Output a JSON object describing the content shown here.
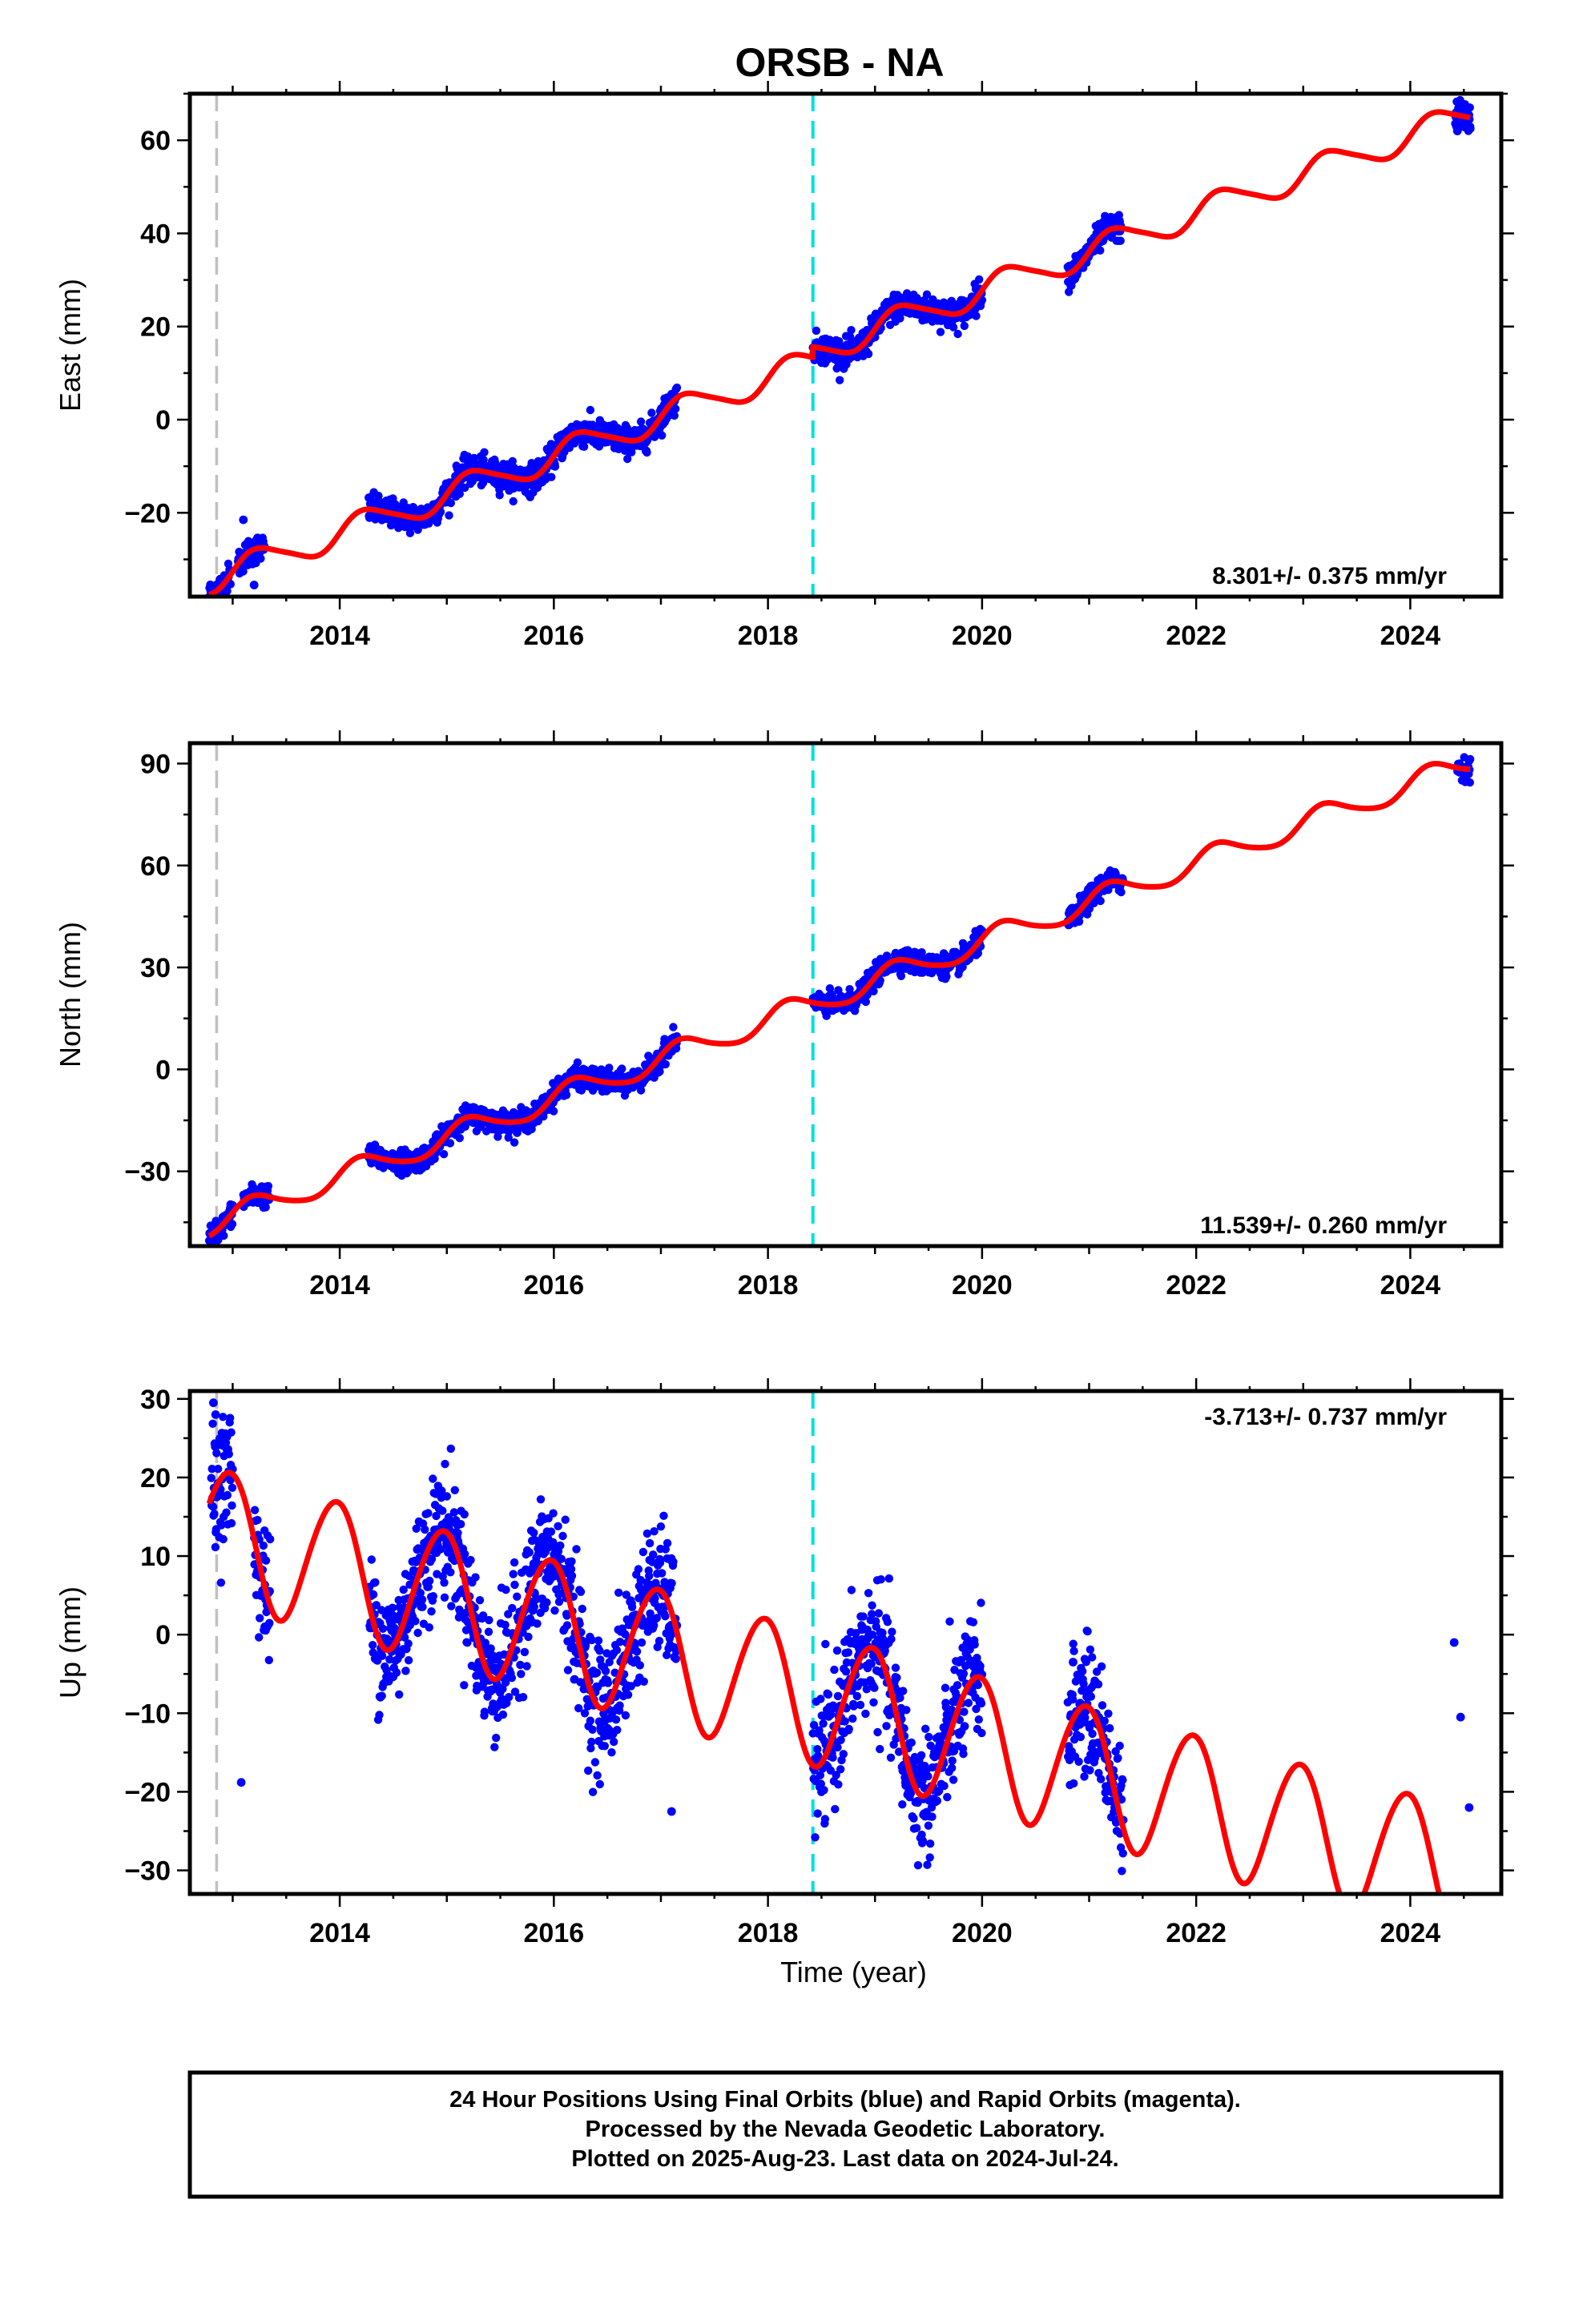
{
  "title": "ORSB - NA",
  "footer": {
    "line1": "24 Hour Positions Using Final Orbits (blue) and Rapid Orbits (magenta).",
    "line2": "Processed by the Nevada Geodetic Laboratory.",
    "line3": "Plotted on 2025-Aug-23. Last data on 2024-Jul-24."
  },
  "colors": {
    "data_points": "#0000ff",
    "model_fit": "#ff0000",
    "marker_equipment": "#c0c0c0",
    "marker_offset": "#00e0e0",
    "frame": "#000000"
  },
  "chart_data": [
    {
      "type": "scatter",
      "component": "East",
      "ylabel": "East (mm)",
      "xlabel": "",
      "xlim": [
        2012.6,
        2024.85
      ],
      "ylim": [
        -38,
        70
      ],
      "xticks": [
        2014,
        2016,
        2018,
        2020,
        2022,
        2024
      ],
      "yticks": [
        -20,
        0,
        20,
        40,
        60
      ],
      "rate_text": "8.301+/- 0.375 mm/yr",
      "rate_position": "bottom-right",
      "trend": {
        "rate": 8.301,
        "intercept_at_2012_8": -32.0,
        "annual_amp": 3.0,
        "annual_phase": 0.0,
        "semiannual_amp": 0.5
      },
      "offset_at_break": -2.3,
      "vertical_markers": [
        {
          "x": 2012.85,
          "kind": "equipment"
        },
        {
          "x": 2018.42,
          "kind": "offset"
        }
      ],
      "data_segments": [
        [
          2012.78,
          2012.98
        ],
        [
          2013.05,
          2013.3
        ],
        [
          2014.27,
          2017.15
        ],
        [
          2018.42,
          2020.0
        ],
        [
          2020.8,
          2021.3
        ],
        [
          2024.42,
          2024.56
        ]
      ],
      "scatter": 1.5,
      "outliers": [
        {
          "x": 2013.1,
          "y": -21.5
        },
        {
          "x": 2013.2,
          "y": -35.5
        },
        {
          "x": 2024.48,
          "y": 67.5
        },
        {
          "x": 2024.44,
          "y": 62.0
        },
        {
          "x": 2024.56,
          "y": 62.5
        }
      ]
    },
    {
      "type": "scatter",
      "component": "North",
      "ylabel": "North (mm)",
      "xlabel": "",
      "xlim": [
        2012.6,
        2024.85
      ],
      "ylim": [
        -52,
        96
      ],
      "xticks": [
        2014,
        2016,
        2018,
        2020,
        2022,
        2024
      ],
      "yticks": [
        -30,
        0,
        30,
        60,
        90
      ],
      "rate_text": "11.539+/- 0.260 mm/yr",
      "rate_position": "bottom-right",
      "trend": {
        "rate": 11.539,
        "intercept_at_2012_8": -45.5,
        "annual_amp": 3.5,
        "annual_phase": 0.3,
        "semiannual_amp": 0.5
      },
      "offset_at_break": 0.0,
      "vertical_markers": [
        {
          "x": 2012.85,
          "kind": "equipment"
        },
        {
          "x": 2018.42,
          "kind": "offset"
        }
      ],
      "data_segments": [
        [
          2012.78,
          2013.0
        ],
        [
          2013.1,
          2013.35
        ],
        [
          2014.27,
          2017.15
        ],
        [
          2018.42,
          2020.0
        ],
        [
          2020.8,
          2021.32
        ],
        [
          2024.44,
          2024.56
        ]
      ],
      "scatter": 1.6,
      "outliers": [
        {
          "x": 2012.88,
          "y": -49.0
        },
        {
          "x": 2013.2,
          "y": -37.0
        }
      ]
    },
    {
      "type": "scatter",
      "component": "Up",
      "ylabel": "Up (mm)",
      "xlabel": "Time (year)",
      "xlim": [
        2012.6,
        2024.85
      ],
      "ylim": [
        -33,
        31
      ],
      "xticks": [
        2014,
        2016,
        2018,
        2020,
        2022,
        2024
      ],
      "yticks": [
        -30,
        -20,
        -10,
        0,
        10,
        20,
        30
      ],
      "rate_text": "-3.713+/- 0.737 mm/yr",
      "rate_position": "top-right",
      "trend": {
        "rate": -3.713,
        "intercept_at_2012_8": 13.0,
        "annual_amp": 8.5,
        "annual_phase": 1.85,
        "semiannual_amp": 0.6
      },
      "offset_at_break": 0.0,
      "vertical_markers": [
        {
          "x": 2012.85,
          "kind": "equipment"
        },
        {
          "x": 2018.42,
          "kind": "offset"
        }
      ],
      "data_segments": [
        [
          2012.8,
          2013.0
        ],
        [
          2013.2,
          2013.35
        ],
        [
          2014.27,
          2017.15
        ],
        [
          2018.42,
          2020.0
        ],
        [
          2020.8,
          2021.32
        ]
      ],
      "scatter": 4.0,
      "outliers": [
        {
          "x": 2012.82,
          "y": 29.5
        },
        {
          "x": 2012.84,
          "y": 28.0
        },
        {
          "x": 2013.08,
          "y": -18.8
        },
        {
          "x": 2013.3,
          "y": 1.0
        },
        {
          "x": 2017.1,
          "y": -22.5
        },
        {
          "x": 2020.85,
          "y": -3.5
        },
        {
          "x": 2024.41,
          "y": -1.0
        },
        {
          "x": 2024.47,
          "y": -10.5
        },
        {
          "x": 2024.55,
          "y": -22.0
        }
      ]
    }
  ]
}
